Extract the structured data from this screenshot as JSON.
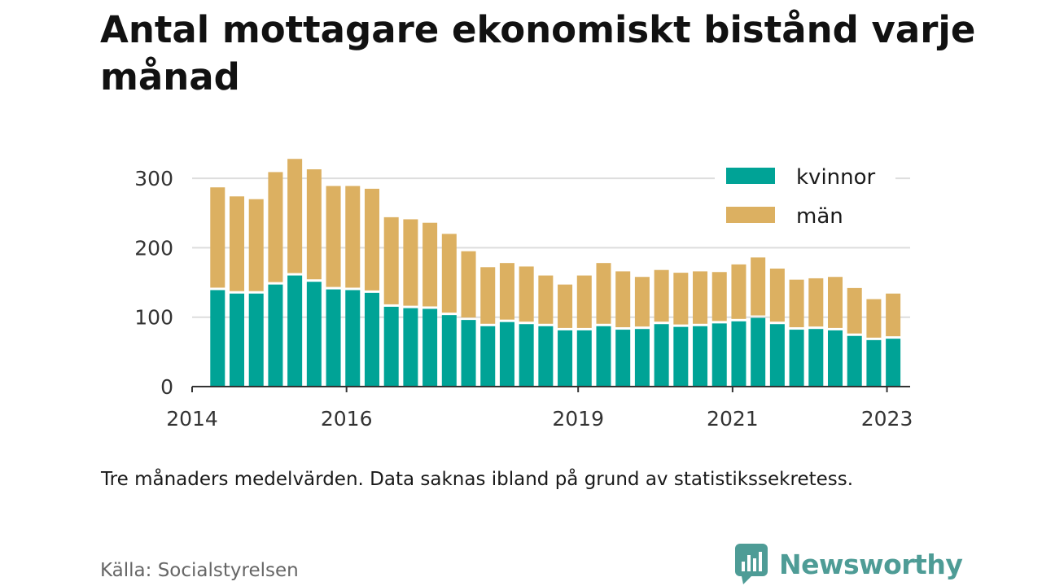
{
  "title": "Antal mottagare ekonomiskt bistånd varje månad",
  "note": "Tre månaders medelvärden. Data saknas ibland på grund av statistikssekretess.",
  "source": "Källa: Socialstyrelsen",
  "brand": "Newsworthy",
  "colors": {
    "kvinnor": "#00a396",
    "man": "#dcb061",
    "axis": "#333333",
    "grid": "#dddddd",
    "brand": "#4e9c96"
  },
  "chart_data": {
    "type": "bar",
    "stacked": true,
    "x_start": 2014.33,
    "x_step": 0.25,
    "xlim": [
      2014,
      2023.3
    ],
    "ylim": [
      0,
      340
    ],
    "yticks": [
      0,
      100,
      200,
      300
    ],
    "ytick_labels": [
      "0",
      "100",
      "200",
      "300"
    ],
    "xticks": [
      2014,
      2016,
      2019,
      2021,
      2023
    ],
    "xtick_labels": [
      "2014",
      "2016",
      "2019",
      "2021",
      "2023"
    ],
    "legend_position": "top-right",
    "grid": true,
    "series": [
      {
        "name": "kvinnor",
        "values": [
          139,
          134,
          134,
          147,
          160,
          151,
          140,
          139,
          135,
          115,
          113,
          112,
          103,
          96,
          87,
          93,
          90,
          87,
          81,
          81,
          87,
          82,
          83,
          90,
          86,
          87,
          91,
          94,
          99,
          90,
          82,
          83,
          81,
          73,
          67,
          69
        ]
      },
      {
        "name": "män",
        "values": [
          148,
          140,
          136,
          162,
          168,
          162,
          149,
          150,
          150,
          129,
          128,
          124,
          117,
          99,
          85,
          85,
          83,
          73,
          66,
          79,
          91,
          84,
          75,
          78,
          78,
          79,
          74,
          82,
          87,
          80,
          72,
          73,
          77,
          69,
          59,
          65
        ]
      }
    ]
  }
}
